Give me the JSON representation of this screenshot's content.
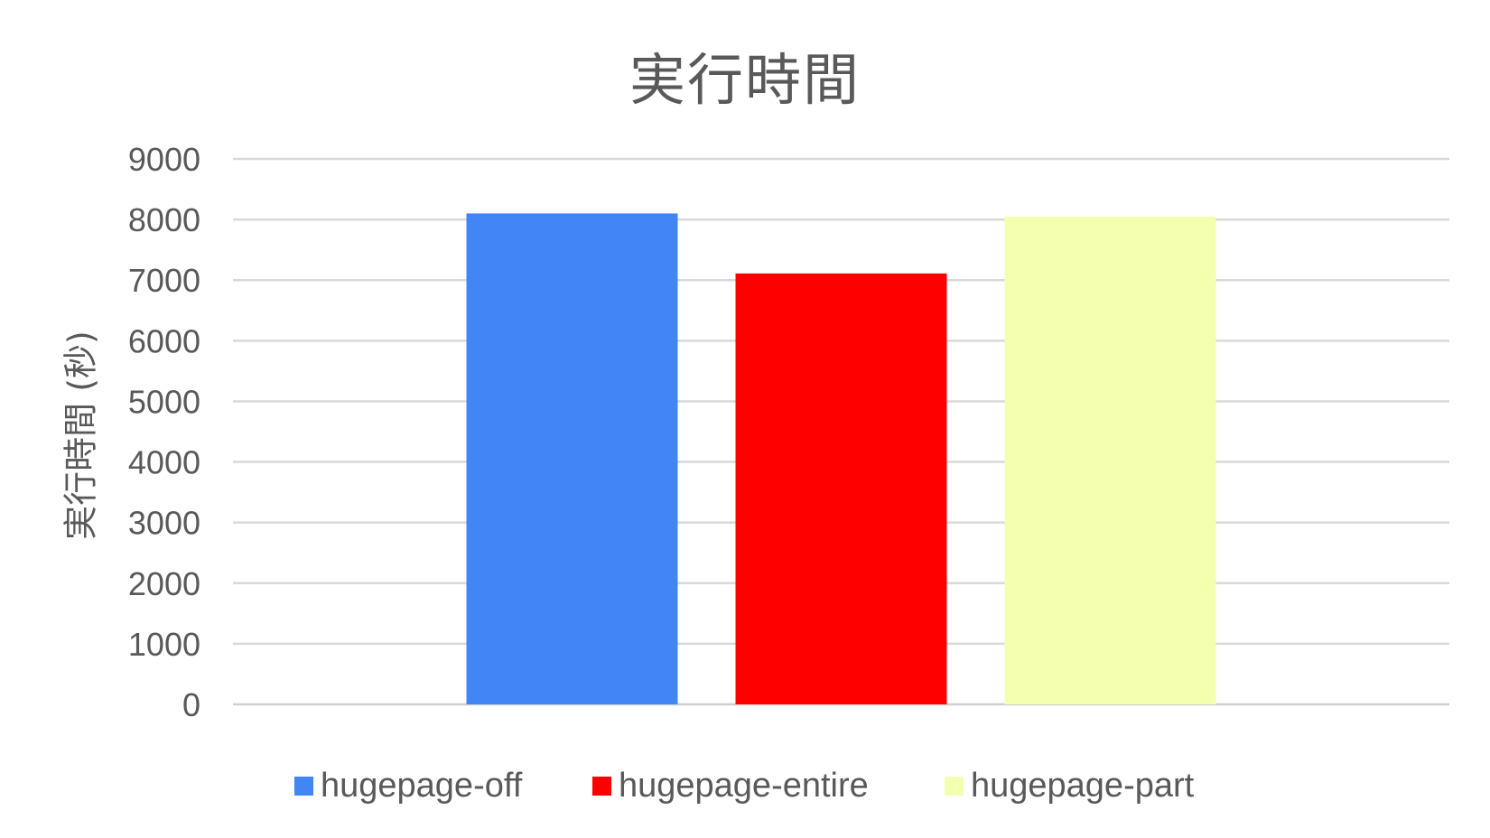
{
  "chart_data": {
    "type": "bar",
    "title": "実行時間",
    "xlabel": "",
    "ylabel": "実行時間 (秒)",
    "ylim": [
      0,
      9000
    ],
    "yticks": [
      0,
      1000,
      2000,
      3000,
      4000,
      5000,
      6000,
      7000,
      8000,
      9000
    ],
    "grid": true,
    "legend_position": "bottom",
    "categories": [
      ""
    ],
    "series": [
      {
        "name": "hugepage-off",
        "values": [
          8100
        ],
        "color": "#4285F4"
      },
      {
        "name": "hugepage-entire",
        "values": [
          7110
        ],
        "color": "#FF0000"
      },
      {
        "name": "hugepage-part",
        "values": [
          8050
        ],
        "color": "#F5FFB0"
      }
    ]
  }
}
